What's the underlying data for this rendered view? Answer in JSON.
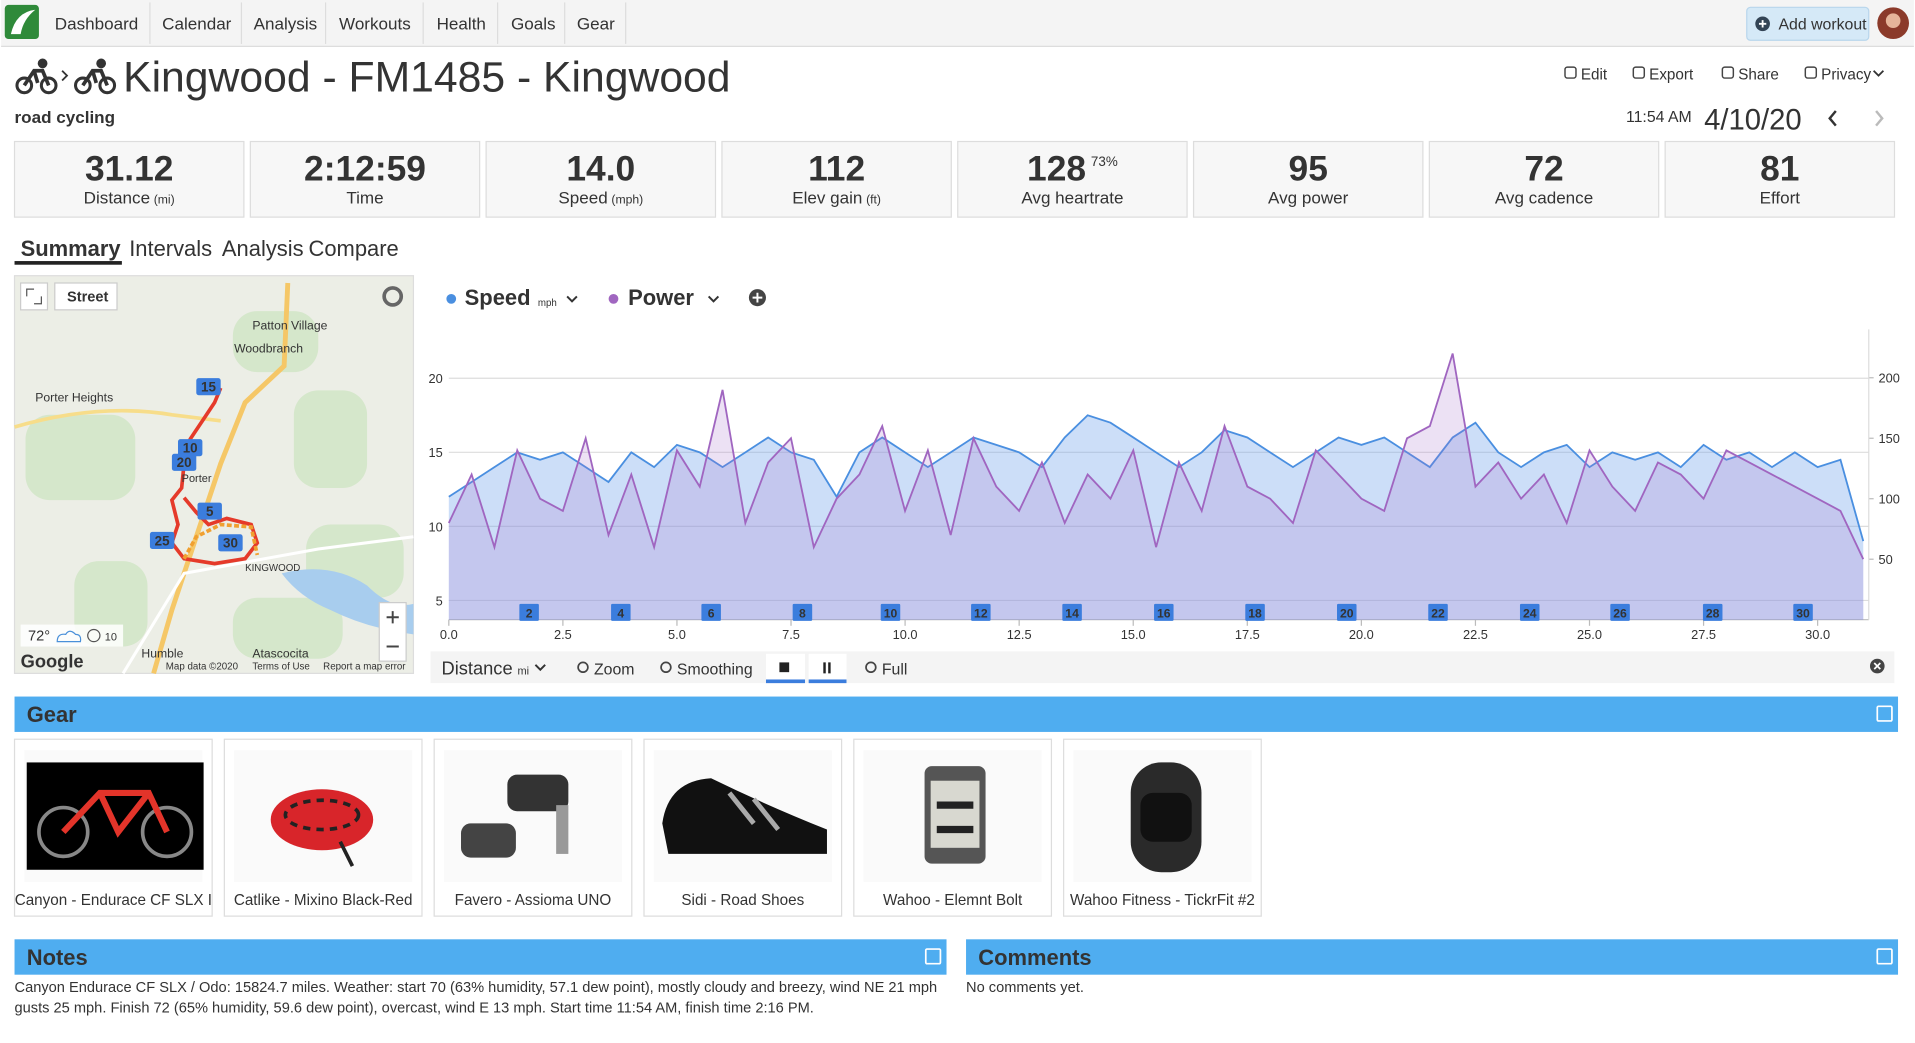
{
  "nav": {
    "items": [
      "Dashboard",
      "Calendar",
      "Analysis",
      "Workouts",
      "Health",
      "Goals",
      "Gear"
    ],
    "add_workout": "Add workout"
  },
  "header": {
    "title": "Kingwood - FM1485 - Kingwood",
    "sport": "road cycling",
    "actions": [
      "Edit",
      "Export",
      "Share",
      "Privacy"
    ],
    "time": "11:54 AM",
    "date": "4/10/20"
  },
  "stats": [
    {
      "value": "31.12",
      "label": "Distance",
      "unit": "(mi)"
    },
    {
      "value": "2:12:59",
      "label": "Time"
    },
    {
      "value": "14.0",
      "label": "Speed",
      "unit": "(mph)"
    },
    {
      "value": "112",
      "label": "Elev gain",
      "unit": "(ft)"
    },
    {
      "value": "128",
      "extra": "73%",
      "label": "Avg heartrate"
    },
    {
      "value": "95",
      "label": "Avg power"
    },
    {
      "value": "72",
      "label": "Avg cadence"
    },
    {
      "value": "81",
      "label": "Effort"
    }
  ],
  "tabs": [
    "Summary",
    "Intervals",
    "Analysis",
    "Compare"
  ],
  "map": {
    "layer": "Street",
    "places": [
      "Patton Village",
      "Woodbranch",
      "Porter Heights",
      "Porter",
      "KINGWOOD",
      "Humble",
      "Atascocita"
    ],
    "markers": [
      "15",
      "10",
      "20",
      "5",
      "25",
      "30"
    ],
    "temp": "72°",
    "wind": "10",
    "attribution": [
      "Map data ©2020",
      "Terms of Use",
      "Report a map error"
    ],
    "brand": "Google"
  },
  "chart_data": {
    "type": "line",
    "x": [
      0,
      0.5,
      1,
      1.5,
      2,
      2.5,
      3,
      3.5,
      4,
      4.5,
      5,
      5.5,
      6,
      6.5,
      7,
      7.5,
      8,
      8.5,
      9,
      9.5,
      10,
      10.5,
      11,
      11.5,
      12,
      12.5,
      13,
      13.5,
      14,
      14.5,
      15,
      15.5,
      16,
      16.5,
      17,
      17.5,
      18,
      18.5,
      19,
      19.5,
      20,
      20.5,
      21,
      21.5,
      22,
      22.5,
      23,
      23.5,
      24,
      24.5,
      25,
      25.5,
      26,
      26.5,
      27,
      27.5,
      28,
      28.5,
      29,
      29.5,
      30,
      30.5,
      31
    ],
    "xlim": [
      0,
      31.12
    ],
    "xticks": [
      {
        "value": 0,
        "label": "0.0"
      },
      {
        "value": 2.5,
        "label": "2.5"
      },
      {
        "value": 5,
        "label": "5.0"
      },
      {
        "value": 7.5,
        "label": "7.5"
      },
      {
        "value": 10,
        "label": "10.0"
      },
      {
        "value": 12.5,
        "label": "12.5"
      },
      {
        "value": 15,
        "label": "15.0"
      },
      {
        "value": 17.5,
        "label": "17.5"
      },
      {
        "value": 20,
        "label": "20.0"
      },
      {
        "value": 22.5,
        "label": "22.5"
      },
      {
        "value": 25,
        "label": "25.0"
      },
      {
        "value": 27.5,
        "label": "27.5"
      },
      {
        "value": 30,
        "label": "30.0"
      }
    ],
    "xlabel": "Distance",
    "xunit": "mi",
    "ylim": [
      3.7,
      23.3
    ],
    "yticks": [
      5,
      10,
      15,
      20
    ],
    "y2lim": [
      0,
      240
    ],
    "y2ticks": [
      50,
      100,
      150,
      200
    ],
    "grid": true,
    "series": [
      {
        "name": "Speed",
        "unit": "mph",
        "color": "#4a8fe0",
        "values": [
          12,
          13,
          14,
          15,
          14.5,
          15,
          14,
          13,
          15,
          14,
          15.5,
          15,
          14,
          15,
          16,
          15,
          14.5,
          12,
          15,
          16,
          15,
          14,
          15,
          16,
          15.5,
          15,
          14,
          16,
          17.5,
          17,
          16,
          15,
          14,
          15,
          16.5,
          16,
          15,
          14,
          15,
          16,
          15.5,
          16,
          15,
          14,
          16,
          17,
          15,
          14,
          15,
          15.5,
          14,
          15,
          14.5,
          15,
          14,
          15.5,
          14.5,
          15,
          14,
          15,
          14,
          14.5,
          9
        ]
      },
      {
        "name": "Power",
        "color": "#a066c0",
        "axis": "y2",
        "values": [
          80,
          120,
          60,
          140,
          100,
          90,
          150,
          70,
          120,
          60,
          140,
          110,
          190,
          80,
          130,
          150,
          60,
          100,
          120,
          160,
          90,
          140,
          70,
          150,
          110,
          90,
          130,
          80,
          120,
          100,
          140,
          60,
          130,
          90,
          160,
          110,
          100,
          80,
          140,
          120,
          100,
          90,
          150,
          160,
          220,
          110,
          130,
          100,
          120,
          80,
          140,
          110,
          90,
          130,
          120,
          100,
          140,
          130,
          120,
          110,
          100,
          90,
          50
        ]
      }
    ],
    "laps": [
      {
        "value": 1.76,
        "label": "2"
      },
      {
        "value": 3.77,
        "label": "4"
      },
      {
        "value": 5.75,
        "label": "6"
      },
      {
        "value": 7.75,
        "label": "8"
      },
      {
        "value": 9.68,
        "label": "10"
      },
      {
        "value": 11.66,
        "label": "12"
      },
      {
        "value": 13.66,
        "label": "14"
      },
      {
        "value": 15.67,
        "label": "16"
      },
      {
        "value": 17.67,
        "label": "18"
      },
      {
        "value": 19.68,
        "label": "20"
      },
      {
        "value": 21.68,
        "label": "22"
      },
      {
        "value": 23.69,
        "label": "24"
      },
      {
        "value": 25.67,
        "label": "26"
      },
      {
        "value": 27.7,
        "label": "28"
      },
      {
        "value": 29.68,
        "label": "30"
      }
    ]
  },
  "chart_toolbar": [
    "Zoom",
    "Smoothing",
    "Full"
  ],
  "gear": {
    "title": "Gear",
    "items": [
      "Canyon - Endurace CF SLX I",
      "Catlike - Mixino Black-Red",
      "Favero - Assioma UNO",
      "Sidi - Road Shoes",
      "Wahoo - Elemnt Bolt",
      "Wahoo Fitness - TickrFit #2"
    ]
  },
  "notes": {
    "title": "Notes",
    "text": [
      "Canyon Endurace CF SLX / Odo: 15824.7 miles. Weather: start 70 (63% humidity, 57.1 dew point), mostly cloudy and breezy, wind NE 21 mph",
      "gusts 25 mph. Finish 72 (65% humidity, 59.6 dew point), overcast, wind E 13 mph. Start time 11:54 AM, finish time 2:16 PM."
    ]
  },
  "comments": {
    "title": "Comments",
    "text": "No comments yet."
  }
}
